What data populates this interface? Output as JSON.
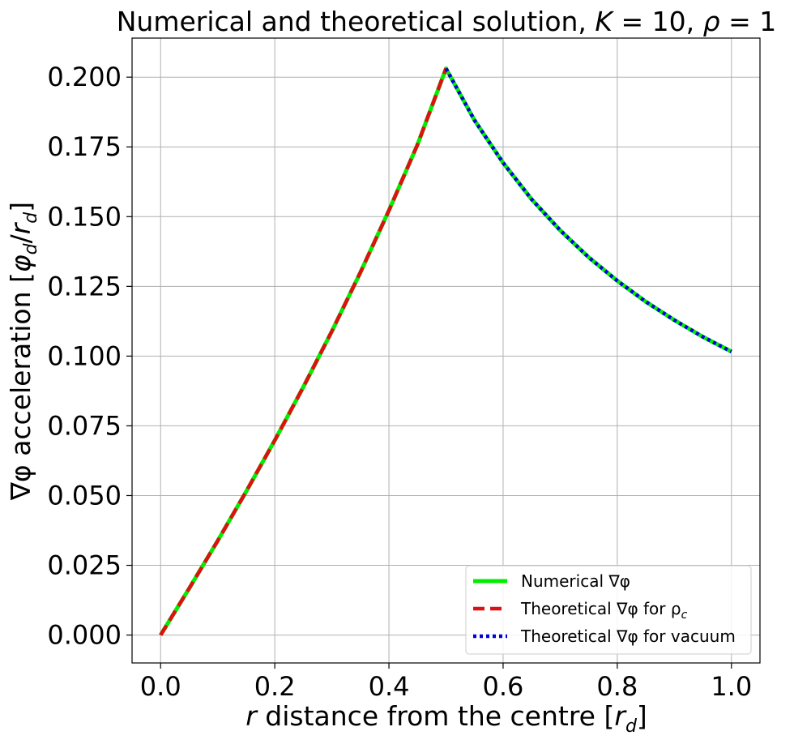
{
  "chart_data": {
    "type": "line",
    "title": "Numerical and theoretical solution, K = 10, ρ = 1",
    "title_parts": {
      "prefix": "Numerical and theoretical solution, ",
      "k_symbol": "K",
      "k_value": " = 10, ",
      "rho_symbol": "ρ",
      "rho_value": " = 1"
    },
    "xlabel": "r distance from the centre [r_d]",
    "xlabel_parts": {
      "var": "r",
      "text": " distance from the centre [",
      "unit": "r",
      "unit_sub": "d",
      "close": "]"
    },
    "ylabel": "∇φ acceleration [φ_d/r_d]",
    "ylabel_parts": {
      "prefix": "∇φ acceleration [",
      "num": "φ",
      "num_sub": "d",
      "slash": "/",
      "den": "r",
      "den_sub": "d",
      "close": "]"
    },
    "xlim": [
      -0.05,
      1.05
    ],
    "ylim": [
      -0.01,
      0.214
    ],
    "xticks": [
      0.0,
      0.2,
      0.4,
      0.6,
      0.8,
      1.0
    ],
    "xtick_labels": [
      "0.0",
      "0.2",
      "0.4",
      "0.6",
      "0.8",
      "1.0"
    ],
    "yticks": [
      0.0,
      0.025,
      0.05,
      0.075,
      0.1,
      0.125,
      0.15,
      0.175,
      0.2
    ],
    "ytick_labels": [
      "0.000",
      "0.025",
      "0.050",
      "0.075",
      "0.100",
      "0.125",
      "0.150",
      "0.175",
      "0.200"
    ],
    "grid": true,
    "legend_position": "lower-right",
    "series": [
      {
        "name": "Numerical ∇φ",
        "legend_parts": {
          "text": "Numerical ∇φ",
          "sub": ""
        },
        "color": "#00ee00",
        "style": "solid",
        "x": [
          0.0,
          0.05,
          0.1,
          0.15,
          0.2,
          0.25,
          0.3,
          0.35,
          0.4,
          0.45,
          0.5,
          0.55,
          0.6,
          0.65,
          0.7,
          0.75,
          0.8,
          0.85,
          0.9,
          0.95,
          1.0
        ],
        "y": [
          0.0,
          0.0167,
          0.0338,
          0.0515,
          0.0698,
          0.0889,
          0.1089,
          0.13,
          0.1522,
          0.1758,
          0.2031,
          0.1845,
          0.1693,
          0.1562,
          0.1451,
          0.1354,
          0.127,
          0.1195,
          0.1129,
          0.1069,
          0.1016
        ]
      },
      {
        "name": "Theoretical ∇φ for ρ_c",
        "legend_parts": {
          "text": "Theoretical ∇φ for ρ",
          "sub": "c"
        },
        "color": "#dd1111",
        "style": "dashed",
        "x": [
          0.0,
          0.05,
          0.1,
          0.15,
          0.2,
          0.25,
          0.3,
          0.35,
          0.4,
          0.45,
          0.5
        ],
        "y": [
          0.0,
          0.0167,
          0.0338,
          0.0515,
          0.0698,
          0.0889,
          0.1089,
          0.13,
          0.1522,
          0.1758,
          0.2031
        ]
      },
      {
        "name": "Theoretical ∇φ for vacuum",
        "legend_parts": {
          "text": "Theoretical ∇φ for vacuum",
          "sub": ""
        },
        "color": "#0000dd",
        "style": "dotted",
        "x": [
          0.5,
          0.55,
          0.6,
          0.65,
          0.7,
          0.75,
          0.8,
          0.85,
          0.9,
          0.95,
          1.0
        ],
        "y": [
          0.2031,
          0.1845,
          0.1693,
          0.1562,
          0.1451,
          0.1354,
          0.127,
          0.1195,
          0.1129,
          0.1069,
          0.1016
        ]
      }
    ]
  }
}
